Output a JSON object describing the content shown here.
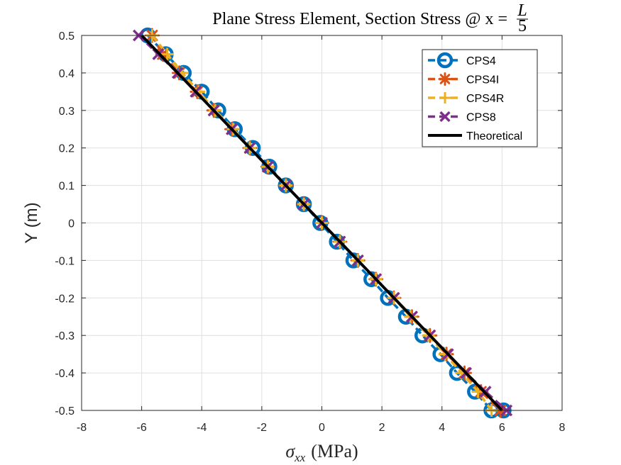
{
  "chart_data": {
    "type": "line",
    "title": "Plane Stress Element, Section Stress @ x = ",
    "title_frac_num": "L",
    "title_frac_den": "5",
    "xlabel_symbol": "σ",
    "xlabel_sub": "xx",
    "xlabel_unit": "(MPa)",
    "ylabel": "Y (m)",
    "xlim": [
      -8,
      8
    ],
    "ylim": [
      -0.5,
      0.5
    ],
    "xticks": [
      -8,
      -6,
      -4,
      -2,
      0,
      2,
      4,
      6,
      8
    ],
    "yticks": [
      -0.5,
      -0.4,
      -0.3,
      -0.2,
      -0.1,
      0,
      0.1,
      0.2,
      0.3,
      0.4,
      0.5
    ],
    "grid": true,
    "legend_position": "top-right",
    "series": [
      {
        "name": "CPS4",
        "color": "#0072BD",
        "marker": "circle",
        "x": [
          -5.8,
          -5.2,
          -4.6,
          -4.0,
          -3.45,
          -2.9,
          -2.3,
          -1.75,
          -1.2,
          -0.6,
          -0.05,
          0.5,
          1.05,
          1.65,
          2.2,
          2.8,
          3.35,
          3.95,
          4.5,
          5.1,
          5.65,
          6.05
        ],
        "y": [
          0.5,
          0.45,
          0.4,
          0.35,
          0.3,
          0.25,
          0.2,
          0.15,
          0.1,
          0.05,
          0.0,
          -0.05,
          -0.1,
          -0.15,
          -0.2,
          -0.25,
          -0.3,
          -0.35,
          -0.4,
          -0.45,
          -0.5,
          -0.5
        ]
      },
      {
        "name": "CPS4I",
        "color": "#D95319",
        "marker": "asterisk",
        "x": [
          -5.65,
          -5.3,
          -4.75,
          -4.15,
          -3.6,
          -3.0,
          -2.4,
          -1.8,
          -1.2,
          -0.6,
          0.0,
          0.6,
          1.2,
          1.8,
          2.4,
          3.0,
          3.6,
          4.15,
          4.75,
          5.3,
          5.95
        ],
        "y": [
          0.5,
          0.45,
          0.4,
          0.35,
          0.3,
          0.25,
          0.2,
          0.15,
          0.1,
          0.05,
          0.0,
          -0.05,
          -0.1,
          -0.15,
          -0.2,
          -0.25,
          -0.3,
          -0.35,
          -0.4,
          -0.45,
          -0.5
        ]
      },
      {
        "name": "CPS4R",
        "color": "#EDB120",
        "marker": "plus",
        "x": [
          -5.65,
          -5.15,
          -4.65,
          -4.1,
          -3.55,
          -2.95,
          -2.4,
          -1.8,
          -1.2,
          -0.6,
          0.0,
          0.6,
          1.2,
          1.8,
          2.4,
          2.95,
          3.55,
          4.1,
          4.65,
          5.2,
          5.65
        ],
        "y": [
          0.5,
          0.45,
          0.4,
          0.35,
          0.3,
          0.25,
          0.2,
          0.15,
          0.1,
          0.05,
          0.0,
          -0.05,
          -0.1,
          -0.15,
          -0.2,
          -0.25,
          -0.3,
          -0.35,
          -0.4,
          -0.45,
          -0.5
        ]
      },
      {
        "name": "CPS8",
        "color": "#7E2F8E",
        "marker": "x",
        "x": [
          -6.1,
          -5.45,
          -4.8,
          -4.2,
          -3.6,
          -3.0,
          -2.4,
          -1.8,
          -1.2,
          -0.6,
          0.0,
          0.6,
          1.2,
          1.8,
          2.4,
          3.0,
          3.6,
          4.2,
          4.8,
          5.45,
          6.15
        ],
        "y": [
          0.5,
          0.45,
          0.4,
          0.35,
          0.3,
          0.25,
          0.2,
          0.15,
          0.1,
          0.05,
          0.0,
          -0.05,
          -0.1,
          -0.15,
          -0.2,
          -0.25,
          -0.3,
          -0.35,
          -0.4,
          -0.45,
          -0.5
        ]
      },
      {
        "name": "Theoretical",
        "color": "#000000",
        "marker": "none",
        "x": [
          -6.0,
          6.0
        ],
        "y": [
          0.5,
          -0.5
        ]
      }
    ]
  }
}
